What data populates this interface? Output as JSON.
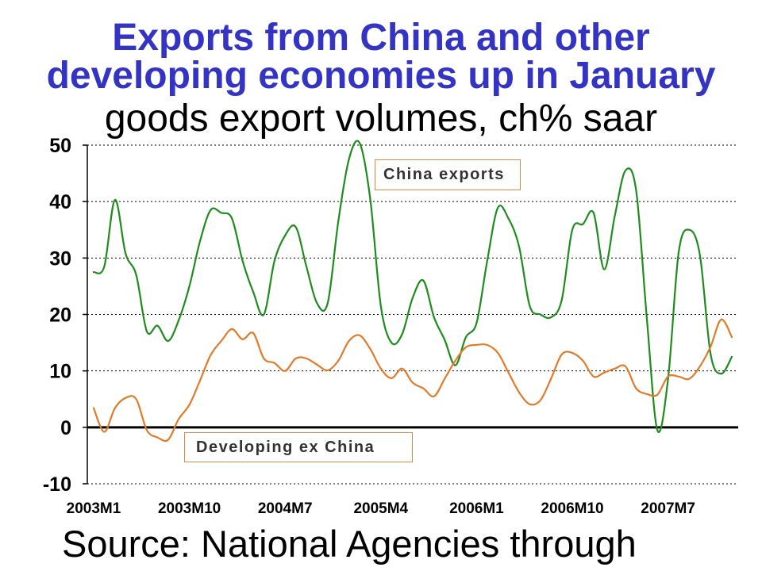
{
  "chart_data": {
    "type": "line",
    "title": "Exports from China and other developing economies up in January",
    "subtitle": "goods export volumes, ch% saar",
    "source": "Source: National Agencies through",
    "x": [
      "2003M1",
      "2003M2",
      "2003M3",
      "2003M4",
      "2003M5",
      "2003M6",
      "2003M7",
      "2003M8",
      "2003M9",
      "2003M10",
      "2003M11",
      "2003M12",
      "2004M1",
      "2004M2",
      "2004M3",
      "2004M4",
      "2004M5",
      "2004M6",
      "2004M7",
      "2004M8",
      "2004M9",
      "2004M10",
      "2004M11",
      "2004M12",
      "2005M1",
      "2005M2",
      "2005M3",
      "2005M4",
      "2005M5",
      "2005M6",
      "2005M7",
      "2005M8",
      "2005M9",
      "2005M10",
      "2005M11",
      "2005M12",
      "2006M1",
      "2006M2",
      "2006M3",
      "2006M4",
      "2006M5",
      "2006M6",
      "2006M7",
      "2006M8",
      "2006M9",
      "2006M10",
      "2006M11",
      "2006M12",
      "2007M1",
      "2007M2",
      "2007M3",
      "2007M4",
      "2007M5",
      "2007M6",
      "2007M7",
      "2007M8",
      "2007M9",
      "2007M10",
      "2007M11",
      "2007M12",
      "2008M1"
    ],
    "xticks": [
      "2003M1",
      "2003M10",
      "2004M7",
      "2005M4",
      "2006M1",
      "2006M10",
      "2007M7"
    ],
    "ylim": [
      -10,
      50
    ],
    "yticks": [
      50,
      40,
      30,
      20,
      10,
      0,
      -10
    ],
    "grid": true,
    "colors": {
      "title": "#3434c4",
      "label_box_border": "#d98a4a",
      "zero_line": "#000000"
    },
    "series": [
      {
        "name": "China exports",
        "color": "#1e8c1e",
        "values": [
          27.5,
          28.5,
          40.3,
          30.8,
          27.0,
          17.0,
          18.0,
          15.3,
          19.0,
          25.0,
          33.0,
          38.5,
          38.0,
          37.0,
          29.5,
          24.0,
          20.0,
          29.5,
          34.0,
          35.5,
          28.5,
          22.0,
          22.0,
          36.5,
          47.5,
          50.4,
          40.5,
          21.5,
          15.0,
          16.5,
          23.0,
          26.0,
          19.5,
          15.5,
          11.0,
          16.0,
          18.5,
          29.5,
          38.9,
          37.0,
          32.0,
          21.5,
          20.0,
          19.5,
          22.5,
          35.0,
          36.0,
          38.0,
          28.0,
          37.5,
          45.5,
          42.0,
          19.5,
          -0.5,
          8.5,
          31.0,
          35.0,
          30.5,
          13.0,
          9.5,
          12.5
        ]
      },
      {
        "name": "Developing ex China",
        "color": "#e07b2a",
        "values": [
          3.4,
          -0.8,
          3.4,
          5.2,
          5.0,
          -0.5,
          -1.8,
          -2.2,
          1.5,
          4.0,
          8.3,
          12.8,
          15.3,
          17.4,
          15.6,
          16.7,
          12.2,
          11.4,
          10.0,
          12.2,
          12.2,
          11.1,
          10.1,
          11.8,
          15.3,
          16.3,
          13.9,
          10.4,
          8.7,
          10.4,
          7.9,
          6.9,
          5.5,
          8.6,
          11.8,
          14.2,
          14.6,
          14.6,
          13.2,
          9.7,
          6.2,
          4.1,
          4.8,
          8.6,
          12.9,
          13.2,
          11.8,
          9.0,
          9.7,
          10.4,
          10.8,
          6.9,
          5.9,
          5.8,
          9.0,
          9.0,
          8.6,
          10.8,
          14.3,
          19.1,
          16.0
        ]
      }
    ]
  }
}
